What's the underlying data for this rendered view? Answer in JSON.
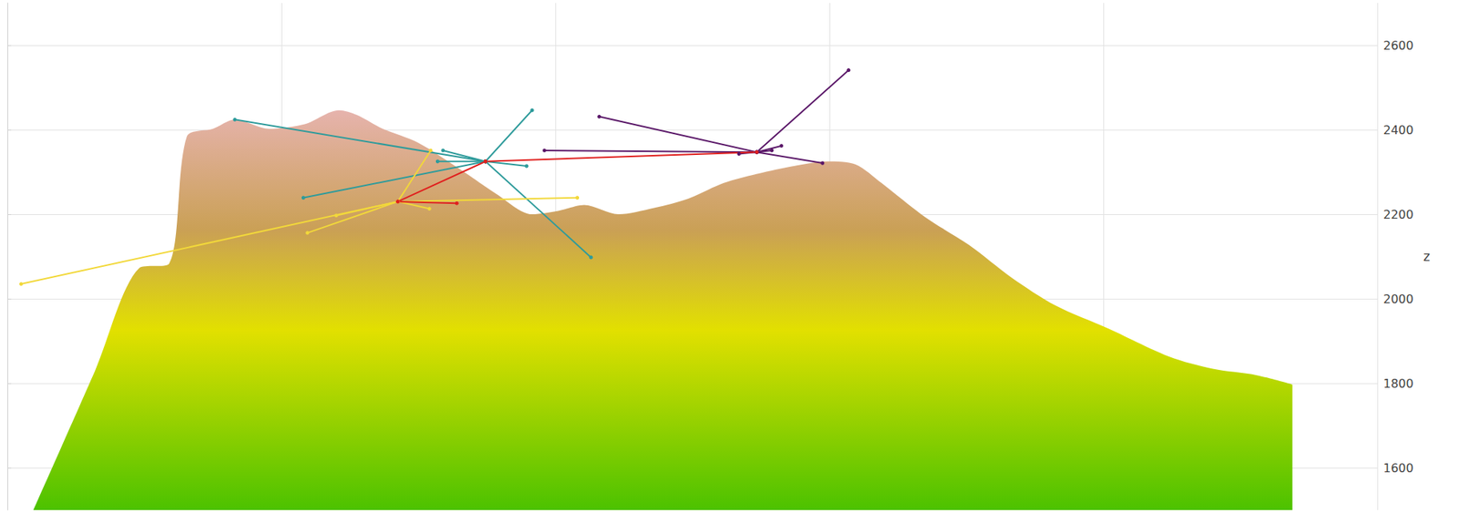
{
  "chart_data": {
    "type": "line",
    "y_label": "z",
    "xlim": [
      0,
      100
    ],
    "xticks": [
      0,
      20,
      40,
      60,
      80,
      100
    ],
    "ylim": [
      1500,
      2700
    ],
    "yticks": [
      1600,
      1800,
      2000,
      2200,
      2400,
      2600
    ],
    "grid": true,
    "tick_labels": "y",
    "series": [
      {
        "type": "area",
        "x": [
          1.9,
          6.4,
          9.6,
          11.8,
          13.1,
          15.0,
          16.6,
          19.1,
          21.7,
          24.2,
          25.5,
          27.4,
          30.0,
          33.2,
          35.7,
          38.3,
          40.2,
          42.1,
          44.6,
          47.2,
          49.7,
          52.3,
          54.8,
          57.4,
          59.9,
          61.9,
          63.8,
          67.0,
          70.2,
          73.3,
          76.5,
          80.4,
          84.8,
          88.0,
          91.2,
          93.8
        ],
        "values": [
          1500,
          1830,
          2072,
          2083,
          2384,
          2402,
          2424,
          2402,
          2413,
          2446,
          2435,
          2402,
          2369,
          2303,
          2248,
          2200,
          2208,
          2222,
          2200,
          2215,
          2237,
          2274,
          2296,
          2314,
          2325,
          2318,
          2274,
          2193,
          2127,
          2050,
          1984,
          1929,
          1863,
          1834,
          1819,
          1797
        ]
      },
      {
        "type": "vector",
        "color": "#2e9b9b",
        "segments": [
          [
            [
              34.9,
              2325
            ],
            [
              16.6,
              2424
            ]
          ],
          [
            [
              34.9,
              2325
            ],
            [
              38.3,
              2446
            ]
          ],
          [
            [
              34.9,
              2325
            ],
            [
              42.6,
              2098
            ]
          ],
          [
            [
              34.9,
              2325
            ],
            [
              21.6,
              2239
            ]
          ],
          [
            [
              34.9,
              2325
            ],
            [
              37.9,
              2314
            ]
          ],
          [
            [
              34.9,
              2325
            ],
            [
              31.8,
              2351
            ]
          ],
          [
            [
              34.9,
              2325
            ],
            [
              31.4,
              2325
            ]
          ]
        ]
      },
      {
        "type": "vector",
        "color": "#f2d83a",
        "segments": [
          [
            [
              28.5,
              2230
            ],
            [
              1.0,
              2035
            ]
          ],
          [
            [
              28.5,
              2230
            ],
            [
              41.6,
              2239
            ]
          ],
          [
            [
              28.5,
              2230
            ],
            [
              30.9,
              2351
            ]
          ],
          [
            [
              28.5,
              2230
            ],
            [
              21.9,
              2156
            ]
          ],
          [
            [
              28.5,
              2230
            ],
            [
              30.8,
              2213
            ]
          ],
          [
            [
              28.5,
              2230
            ],
            [
              24.0,
              2197
            ]
          ]
        ]
      },
      {
        "type": "vector",
        "color": "#5a1768",
        "segments": [
          [
            [
              54.7,
              2347
            ],
            [
              61.4,
              2541
            ]
          ],
          [
            [
              54.7,
              2347
            ],
            [
              43.2,
              2431
            ]
          ],
          [
            [
              54.7,
              2347
            ],
            [
              39.2,
              2351
            ]
          ],
          [
            [
              54.7,
              2347
            ],
            [
              59.5,
              2321
            ]
          ],
          [
            [
              54.7,
              2347
            ],
            [
              56.5,
              2362
            ]
          ],
          [
            [
              54.7,
              2347
            ],
            [
              53.4,
              2343
            ]
          ],
          [
            [
              54.7,
              2347
            ],
            [
              55.8,
              2351
            ]
          ]
        ]
      },
      {
        "type": "vector",
        "color": "#e0201e",
        "segments": [
          [
            [
              28.5,
              2230
            ],
            [
              34.9,
              2325
            ]
          ],
          [
            [
              28.5,
              2230
            ],
            [
              32.8,
              2226
            ]
          ],
          [
            [
              34.9,
              2325
            ],
            [
              54.7,
              2347
            ]
          ]
        ]
      }
    ]
  }
}
